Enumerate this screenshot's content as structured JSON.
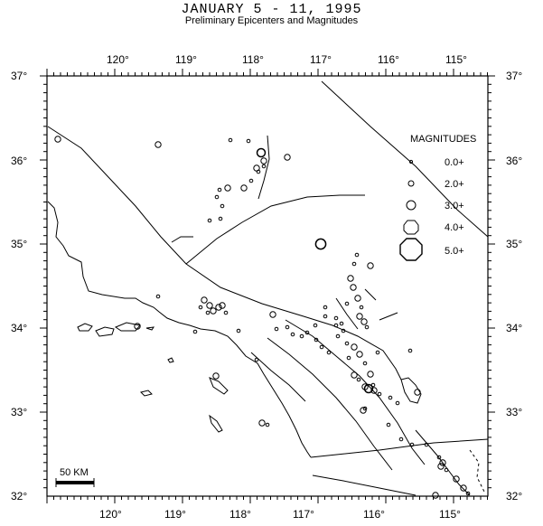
{
  "header": {
    "title": "JANUARY 5 - 11, 1995",
    "subtitle": "Preliminary Epicenters and Magnitudes"
  },
  "axes": {
    "lon_ticks": [
      "120°",
      "119°",
      "118°",
      "117°",
      "116°",
      "115°"
    ],
    "lat_ticks": [
      "37°",
      "36°",
      "35°",
      "34°",
      "33°",
      "32°"
    ]
  },
  "legend": {
    "title": "MAGNITUDES",
    "items": [
      "0.0+",
      "2.0+",
      "3.0+",
      "4.0+",
      "5.0+"
    ]
  },
  "scale_bar": {
    "label": "50 KM"
  },
  "colors": {
    "ink": "#000000",
    "background": "#ffffff"
  }
}
